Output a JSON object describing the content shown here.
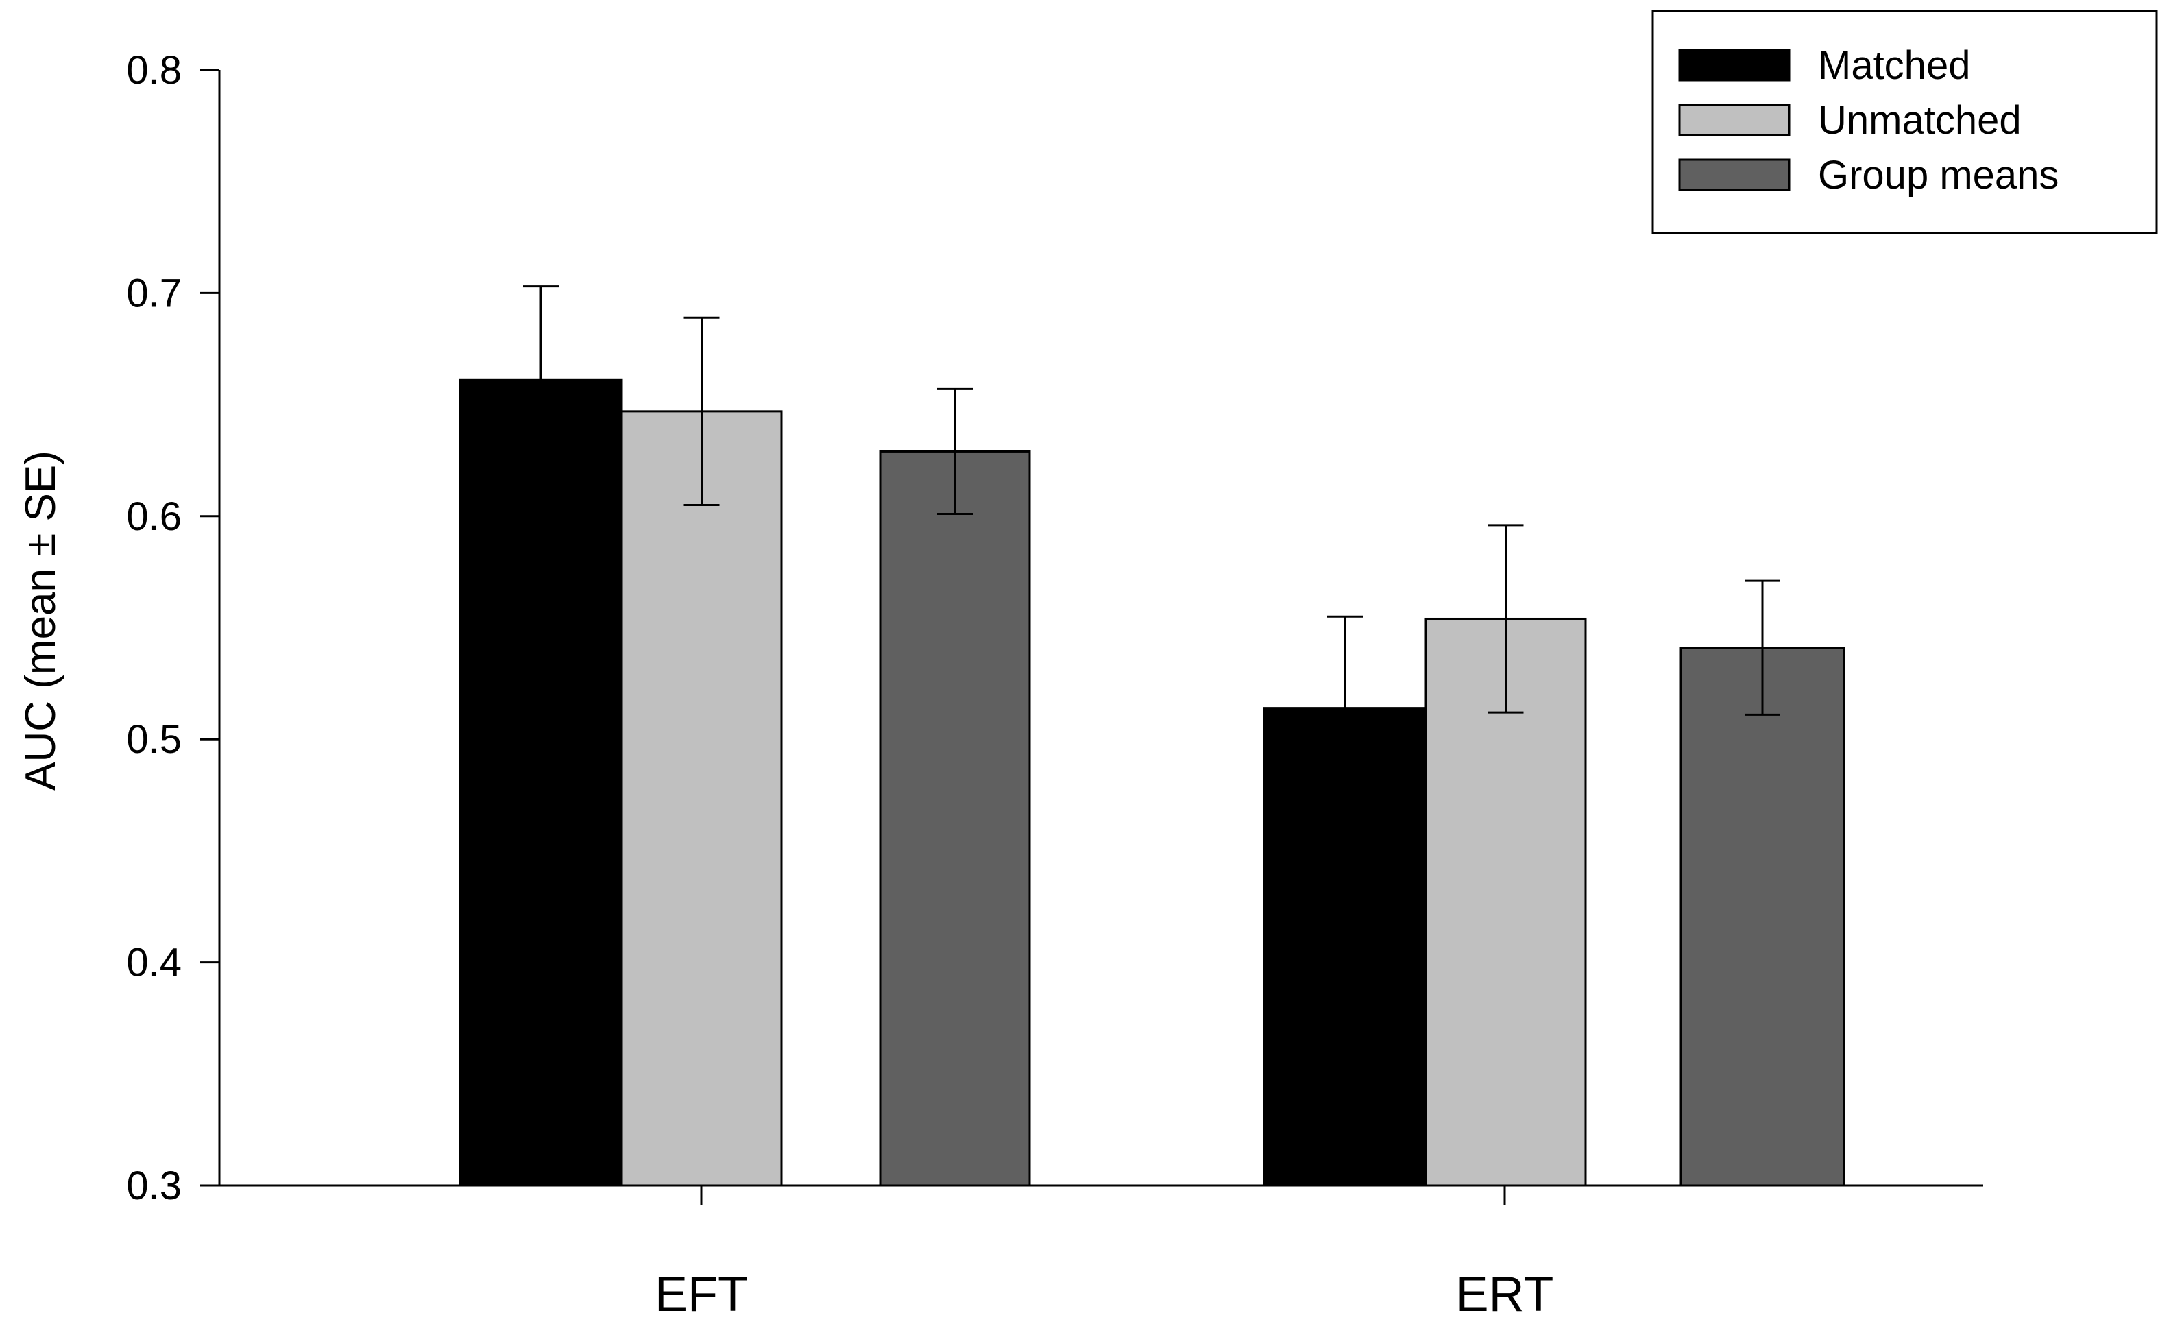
{
  "chart_data": {
    "type": "bar",
    "categories": [
      "EFT",
      "ERT"
    ],
    "series": [
      {
        "name": "Matched",
        "values": [
          0.661,
          0.514
        ],
        "se": [
          0.042,
          0.041
        ],
        "color": "#000000"
      },
      {
        "name": "Unmatched",
        "values": [
          0.647,
          0.554
        ],
        "se": [
          0.042,
          0.042
        ],
        "color": "#c0c0c0"
      },
      {
        "name": "Group means",
        "values": [
          0.629,
          0.541
        ],
        "se": [
          0.028,
          0.03
        ],
        "color": "#606060"
      }
    ],
    "title": "",
    "xlabel": "",
    "ylabel": "AUC (mean ± SE)",
    "ylim": [
      0.3,
      0.8
    ],
    "yticks": [
      "0.3",
      "0.4",
      "0.5",
      "0.6",
      "0.7",
      "0.8"
    ],
    "grid": false,
    "legend_position": "top-right"
  }
}
